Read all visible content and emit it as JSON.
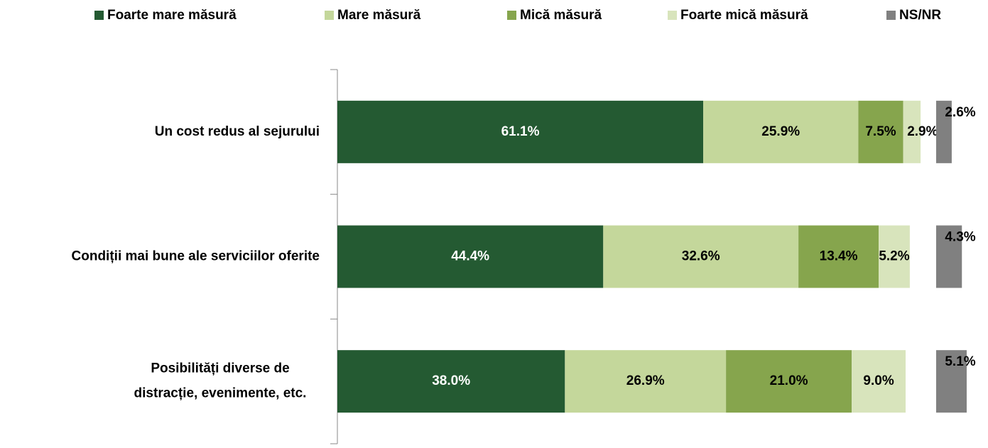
{
  "chart_data": {
    "type": "stacked-bar-horizontal",
    "categories": [
      "Un cost redus al sejurului",
      "Condiții mai bune ale serviciilor oferite",
      [
        "Posibilități diverse de",
        "distracție, evenimente, etc."
      ]
    ],
    "series": [
      {
        "name": "Foarte mare măsură",
        "color": "#245a32",
        "values": [
          61.1,
          44.4,
          38.0
        ],
        "value_labels": [
          "61.1%",
          "44.4%",
          "38.0%"
        ]
      },
      {
        "name": "Mare măsură",
        "color": "#c4d79b",
        "values": [
          25.9,
          32.6,
          26.9
        ],
        "value_labels": [
          "25.9%",
          "32.6%",
          "26.9%"
        ]
      },
      {
        "name": "Mică măsură",
        "color": "#86a54d",
        "values": [
          7.5,
          13.4,
          21.0
        ],
        "value_labels": [
          "7.5%",
          "13.4%",
          "21.0%"
        ]
      },
      {
        "name": "Foarte mică măsură",
        "color": "#d8e4bc",
        "values": [
          2.9,
          5.2,
          9.0
        ],
        "value_labels": [
          "2.9%",
          "5.2%",
          "9.0%"
        ]
      },
      {
        "name": "NS/NR",
        "color": "#808080",
        "values": [
          2.6,
          4.3,
          5.1
        ],
        "value_labels": [
          "2.6%",
          "4.3%",
          "5.1%"
        ],
        "separate": true
      }
    ],
    "xlim": [
      0,
      100
    ],
    "legend": "top"
  }
}
